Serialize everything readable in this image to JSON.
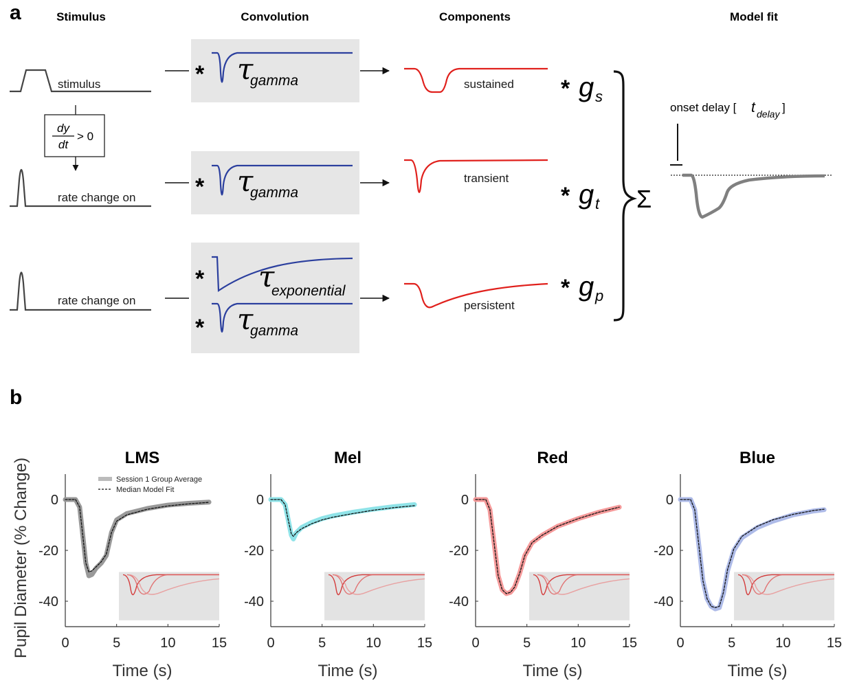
{
  "panel_a": {
    "letter": "a",
    "headers": [
      "Stimulus",
      "Convolution",
      "Components",
      "Model fit"
    ],
    "stimulus_labels": [
      "stimulus",
      "rate change on",
      "rate change on"
    ],
    "derivative": {
      "dy": "dy",
      "dt": "dt",
      "gt": "> 0"
    },
    "kernel_symbol": "τ",
    "kernel_sub": [
      "gamma",
      "gamma",
      "exponential",
      "gamma"
    ],
    "star": "*",
    "component_labels": [
      "sustained",
      "transient",
      "persistent"
    ],
    "gain_symbol": "g",
    "gain_sub": [
      "s",
      "t",
      "p"
    ],
    "sum_symbol": "Σ",
    "onset_label": "onset delay [",
    "onset_t": "t",
    "onset_sub": "delay",
    "onset_close": "]",
    "colors": {
      "kernel": "#2b3f9e",
      "component": "#e0201c",
      "line": "#444444",
      "box": "#e6e6e6",
      "fit": "#808080"
    }
  },
  "panel_b": {
    "letter": "b",
    "ylabel": "Pupil Diameter (% Change)",
    "xlabel": "Time (s)",
    "legend": [
      "Session 1 Group Average",
      "Median Model Fit"
    ]
  },
  "chart_data": [
    {
      "type": "line",
      "title": "LMS",
      "xlabel": "Time (s)",
      "ylabel": "Pupil Diameter (% Change)",
      "xlim": [
        0,
        15
      ],
      "ylim": [
        -50,
        10
      ],
      "xticks": [
        0,
        5,
        10,
        15
      ],
      "yticks": [
        0,
        -20,
        -40
      ],
      "color": "#999999",
      "series": [
        {
          "name": "Session 1 Group Average",
          "x": [
            0,
            1.0,
            1.4,
            1.7,
            2.0,
            2.3,
            2.6,
            3.0,
            3.5,
            4.0,
            4.5,
            5.0,
            6.0,
            8.0,
            10.0,
            12.0,
            14.0
          ],
          "y": [
            0,
            0,
            -3,
            -14,
            -25,
            -30,
            -29.5,
            -27,
            -25,
            -22,
            -13,
            -8,
            -5.5,
            -3.5,
            -2.2,
            -1.5,
            -1.0
          ]
        },
        {
          "name": "Median Model Fit",
          "x": [
            0,
            1.0,
            1.4,
            1.7,
            2.0,
            2.3,
            2.6,
            3.0,
            3.5,
            4.0,
            4.5,
            5.0,
            6.0,
            8.0,
            10.0,
            12.0,
            14.0
          ],
          "y": [
            0,
            0,
            -3,
            -14,
            -25,
            -28.5,
            -28,
            -26.5,
            -24.5,
            -21.5,
            -13,
            -8.5,
            -6,
            -3.8,
            -2.5,
            -1.7,
            -1.1
          ]
        }
      ]
    },
    {
      "type": "line",
      "title": "Mel",
      "xlabel": "Time (s)",
      "xlim": [
        0,
        15
      ],
      "ylim": [
        -50,
        10
      ],
      "xticks": [
        0,
        5,
        10,
        15
      ],
      "yticks": [
        0,
        -20,
        -40
      ],
      "color": "#8fe3e8",
      "series": [
        {
          "name": "Session 1 Group Average",
          "x": [
            0,
            1.0,
            1.4,
            1.7,
            2.0,
            2.2,
            2.5,
            3.0,
            4.0,
            5.0,
            6.0,
            8.0,
            10.0,
            12.0,
            14.0
          ],
          "y": [
            0,
            0,
            -2,
            -8,
            -14,
            -15.5,
            -13,
            -11,
            -9,
            -7.5,
            -6.5,
            -5,
            -3.8,
            -2.8,
            -2.0
          ]
        },
        {
          "name": "Median Model Fit",
          "x": [
            0,
            1.0,
            1.4,
            1.7,
            2.0,
            2.2,
            2.5,
            3.0,
            4.0,
            5.0,
            6.0,
            8.0,
            10.0,
            12.0,
            14.0
          ],
          "y": [
            0,
            0,
            -2,
            -8,
            -13.5,
            -14.5,
            -13,
            -11.5,
            -9.5,
            -8,
            -7,
            -5.5,
            -4.2,
            -3.2,
            -2.4
          ]
        }
      ]
    },
    {
      "type": "line",
      "title": "Red",
      "xlabel": "Time (s)",
      "xlim": [
        0,
        15
      ],
      "ylim": [
        -50,
        10
      ],
      "xticks": [
        0,
        5,
        10,
        15
      ],
      "yticks": [
        0,
        -20,
        -40
      ],
      "color": "#f59a9a",
      "series": [
        {
          "name": "Session 1 Group Average",
          "x": [
            0,
            1.0,
            1.4,
            1.8,
            2.2,
            2.6,
            3.0,
            3.4,
            3.8,
            4.3,
            4.8,
            5.5,
            6.5,
            8.0,
            10.0,
            12.0,
            14.0
          ],
          "y": [
            0,
            0,
            -4,
            -17,
            -30,
            -35.5,
            -37,
            -36.5,
            -34.5,
            -29,
            -22,
            -17,
            -14,
            -10.5,
            -7.5,
            -5,
            -3
          ]
        },
        {
          "name": "Median Model Fit",
          "x": [
            0,
            1.0,
            1.4,
            1.8,
            2.2,
            2.6,
            3.0,
            3.4,
            3.8,
            4.3,
            4.8,
            5.5,
            6.5,
            8.0,
            10.0,
            12.0,
            14.0
          ],
          "y": [
            0,
            0,
            -4,
            -17,
            -30,
            -35.5,
            -37,
            -36.5,
            -34.5,
            -29,
            -22,
            -17,
            -14,
            -10.5,
            -7.5,
            -5,
            -3
          ]
        }
      ]
    },
    {
      "type": "line",
      "title": "Blue",
      "xlabel": "Time (s)",
      "xlim": [
        0,
        15
      ],
      "ylim": [
        -50,
        10
      ],
      "xticks": [
        0,
        5,
        10,
        15
      ],
      "yticks": [
        0,
        -20,
        -40
      ],
      "color": "#aebbe8",
      "series": [
        {
          "name": "Session 1 Group Average",
          "x": [
            0,
            1.0,
            1.4,
            1.8,
            2.2,
            2.6,
            3.0,
            3.4,
            3.8,
            4.2,
            4.6,
            5.2,
            6.0,
            7.5,
            9.0,
            11.0,
            13.0,
            14.0
          ],
          "y": [
            0,
            0,
            -4,
            -18,
            -32,
            -39,
            -42,
            -43,
            -42.5,
            -37,
            -28,
            -20,
            -15,
            -11,
            -8.5,
            -6,
            -4.5,
            -4
          ]
        },
        {
          "name": "Median Model Fit",
          "x": [
            0,
            1.0,
            1.4,
            1.8,
            2.2,
            2.6,
            3.0,
            3.4,
            3.8,
            4.2,
            4.6,
            5.2,
            6.0,
            7.5,
            9.0,
            11.0,
            13.0,
            14.0
          ],
          "y": [
            0,
            0,
            -4,
            -18,
            -32,
            -39,
            -42,
            -42.5,
            -42,
            -36.5,
            -27.5,
            -19.5,
            -14.5,
            -10.5,
            -8,
            -5.8,
            -4.3,
            -3.8
          ]
        }
      ]
    }
  ]
}
